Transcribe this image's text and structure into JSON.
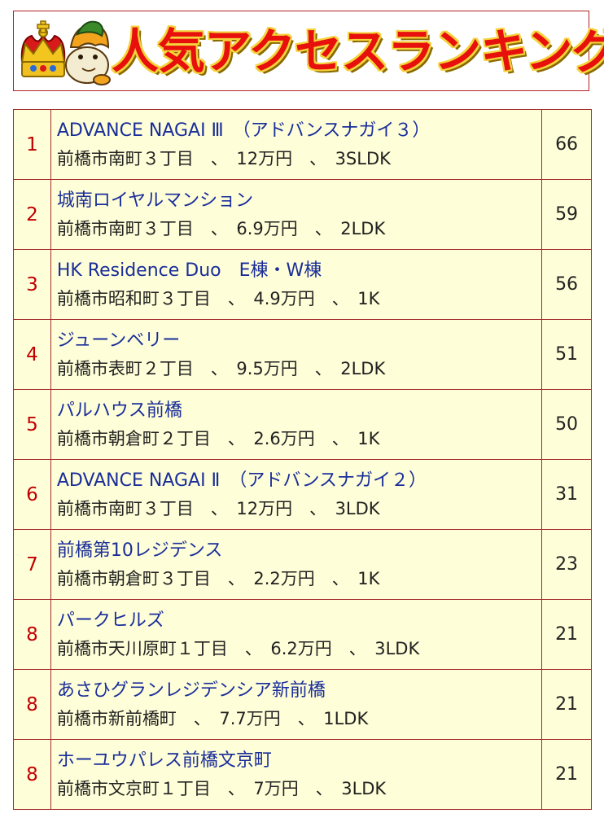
{
  "header": {
    "title": "人気アクセスランキング"
  },
  "colors": {
    "title_red": "#e8100c",
    "title_outline": "#f4d33c",
    "rank_red": "#c00000",
    "link_blue": "#1a2e9a",
    "row_bg": "#fefed8",
    "border": "#a52a2a"
  },
  "rows": [
    {
      "rank": "1",
      "name": "ADVANCE NAGAI Ⅲ　（アドバンスナガイ３）",
      "detail": "前橋市南町３丁目　、　12万円　、　3SLDK",
      "count": "66"
    },
    {
      "rank": "2",
      "name": "城南ロイヤルマンション",
      "detail": "前橋市南町３丁目　、　6.9万円　、　2LDK",
      "count": "59"
    },
    {
      "rank": "3",
      "name": "HK Residence Duo　E棟・W棟",
      "detail": "前橋市昭和町３丁目　、　4.9万円　、　1K",
      "count": "56"
    },
    {
      "rank": "4",
      "name": "ジューンベリー",
      "detail": "前橋市表町２丁目　、　9.5万円　、　2LDK",
      "count": "51"
    },
    {
      "rank": "5",
      "name": "パルハウス前橋",
      "detail": "前橋市朝倉町２丁目　、　2.6万円　、　1K",
      "count": "50"
    },
    {
      "rank": "6",
      "name": "ADVANCE NAGAI Ⅱ　（アドバンスナガイ２）",
      "detail": "前橋市南町３丁目　、　12万円　、　3LDK",
      "count": "31"
    },
    {
      "rank": "7",
      "name": "前橋第10レジデンス",
      "detail": "前橋市朝倉町３丁目　、　2.2万円　、　1K",
      "count": "23"
    },
    {
      "rank": "8",
      "name": "パークヒルズ",
      "detail": "前橋市天川原町１丁目　、　6.2万円　、　3LDK",
      "count": "21"
    },
    {
      "rank": "8",
      "name": "あさひグランレジデンシア新前橋",
      "detail": "前橋市新前橋町　、　7.7万円　、　1LDK",
      "count": "21"
    },
    {
      "rank": "8",
      "name": "ホーユウパレス前橋文京町",
      "detail": "前橋市文京町１丁目　、　7万円　、　3LDK",
      "count": "21"
    }
  ]
}
